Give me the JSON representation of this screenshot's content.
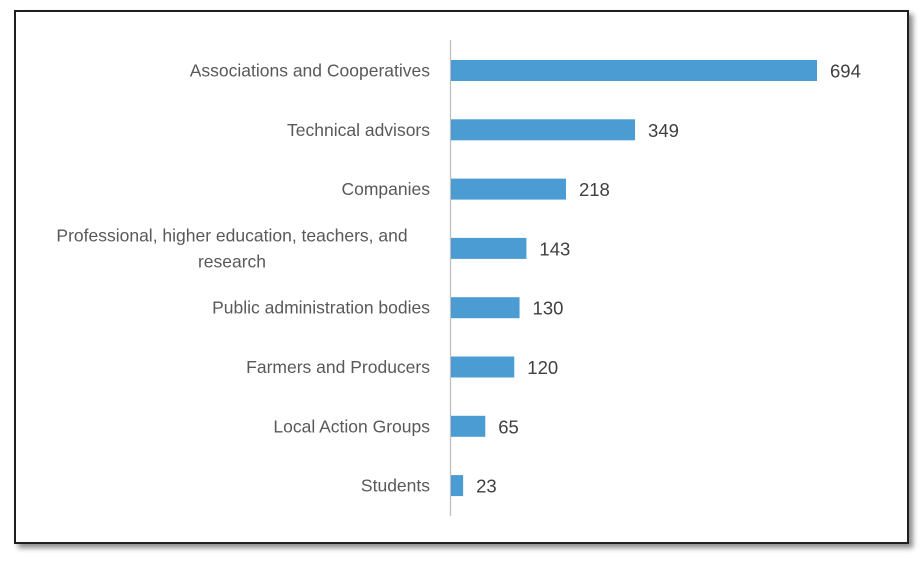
{
  "chart_data": {
    "type": "bar",
    "orientation": "horizontal",
    "title": "",
    "xlabel": "",
    "ylabel": "",
    "categories": [
      [
        "Associations and Cooperatives"
      ],
      [
        "Technical advisors"
      ],
      [
        "Companies"
      ],
      [
        "Professional, higher education, teachers, and",
        "research"
      ],
      [
        "Public administration bodies"
      ],
      [
        "Farmers and Producers"
      ],
      [
        "Local Action Groups"
      ],
      [
        "Students"
      ]
    ],
    "values": [
      694,
      349,
      218,
      143,
      130,
      120,
      65,
      23
    ],
    "value_labels": [
      "694",
      "349",
      "218",
      "143",
      "130",
      "120",
      "65",
      "23"
    ],
    "xlim": [
      0,
      700
    ],
    "grid": false,
    "legend": "none",
    "bar_color": "#4A9CD3",
    "axis_color": "#BFBFBF"
  }
}
